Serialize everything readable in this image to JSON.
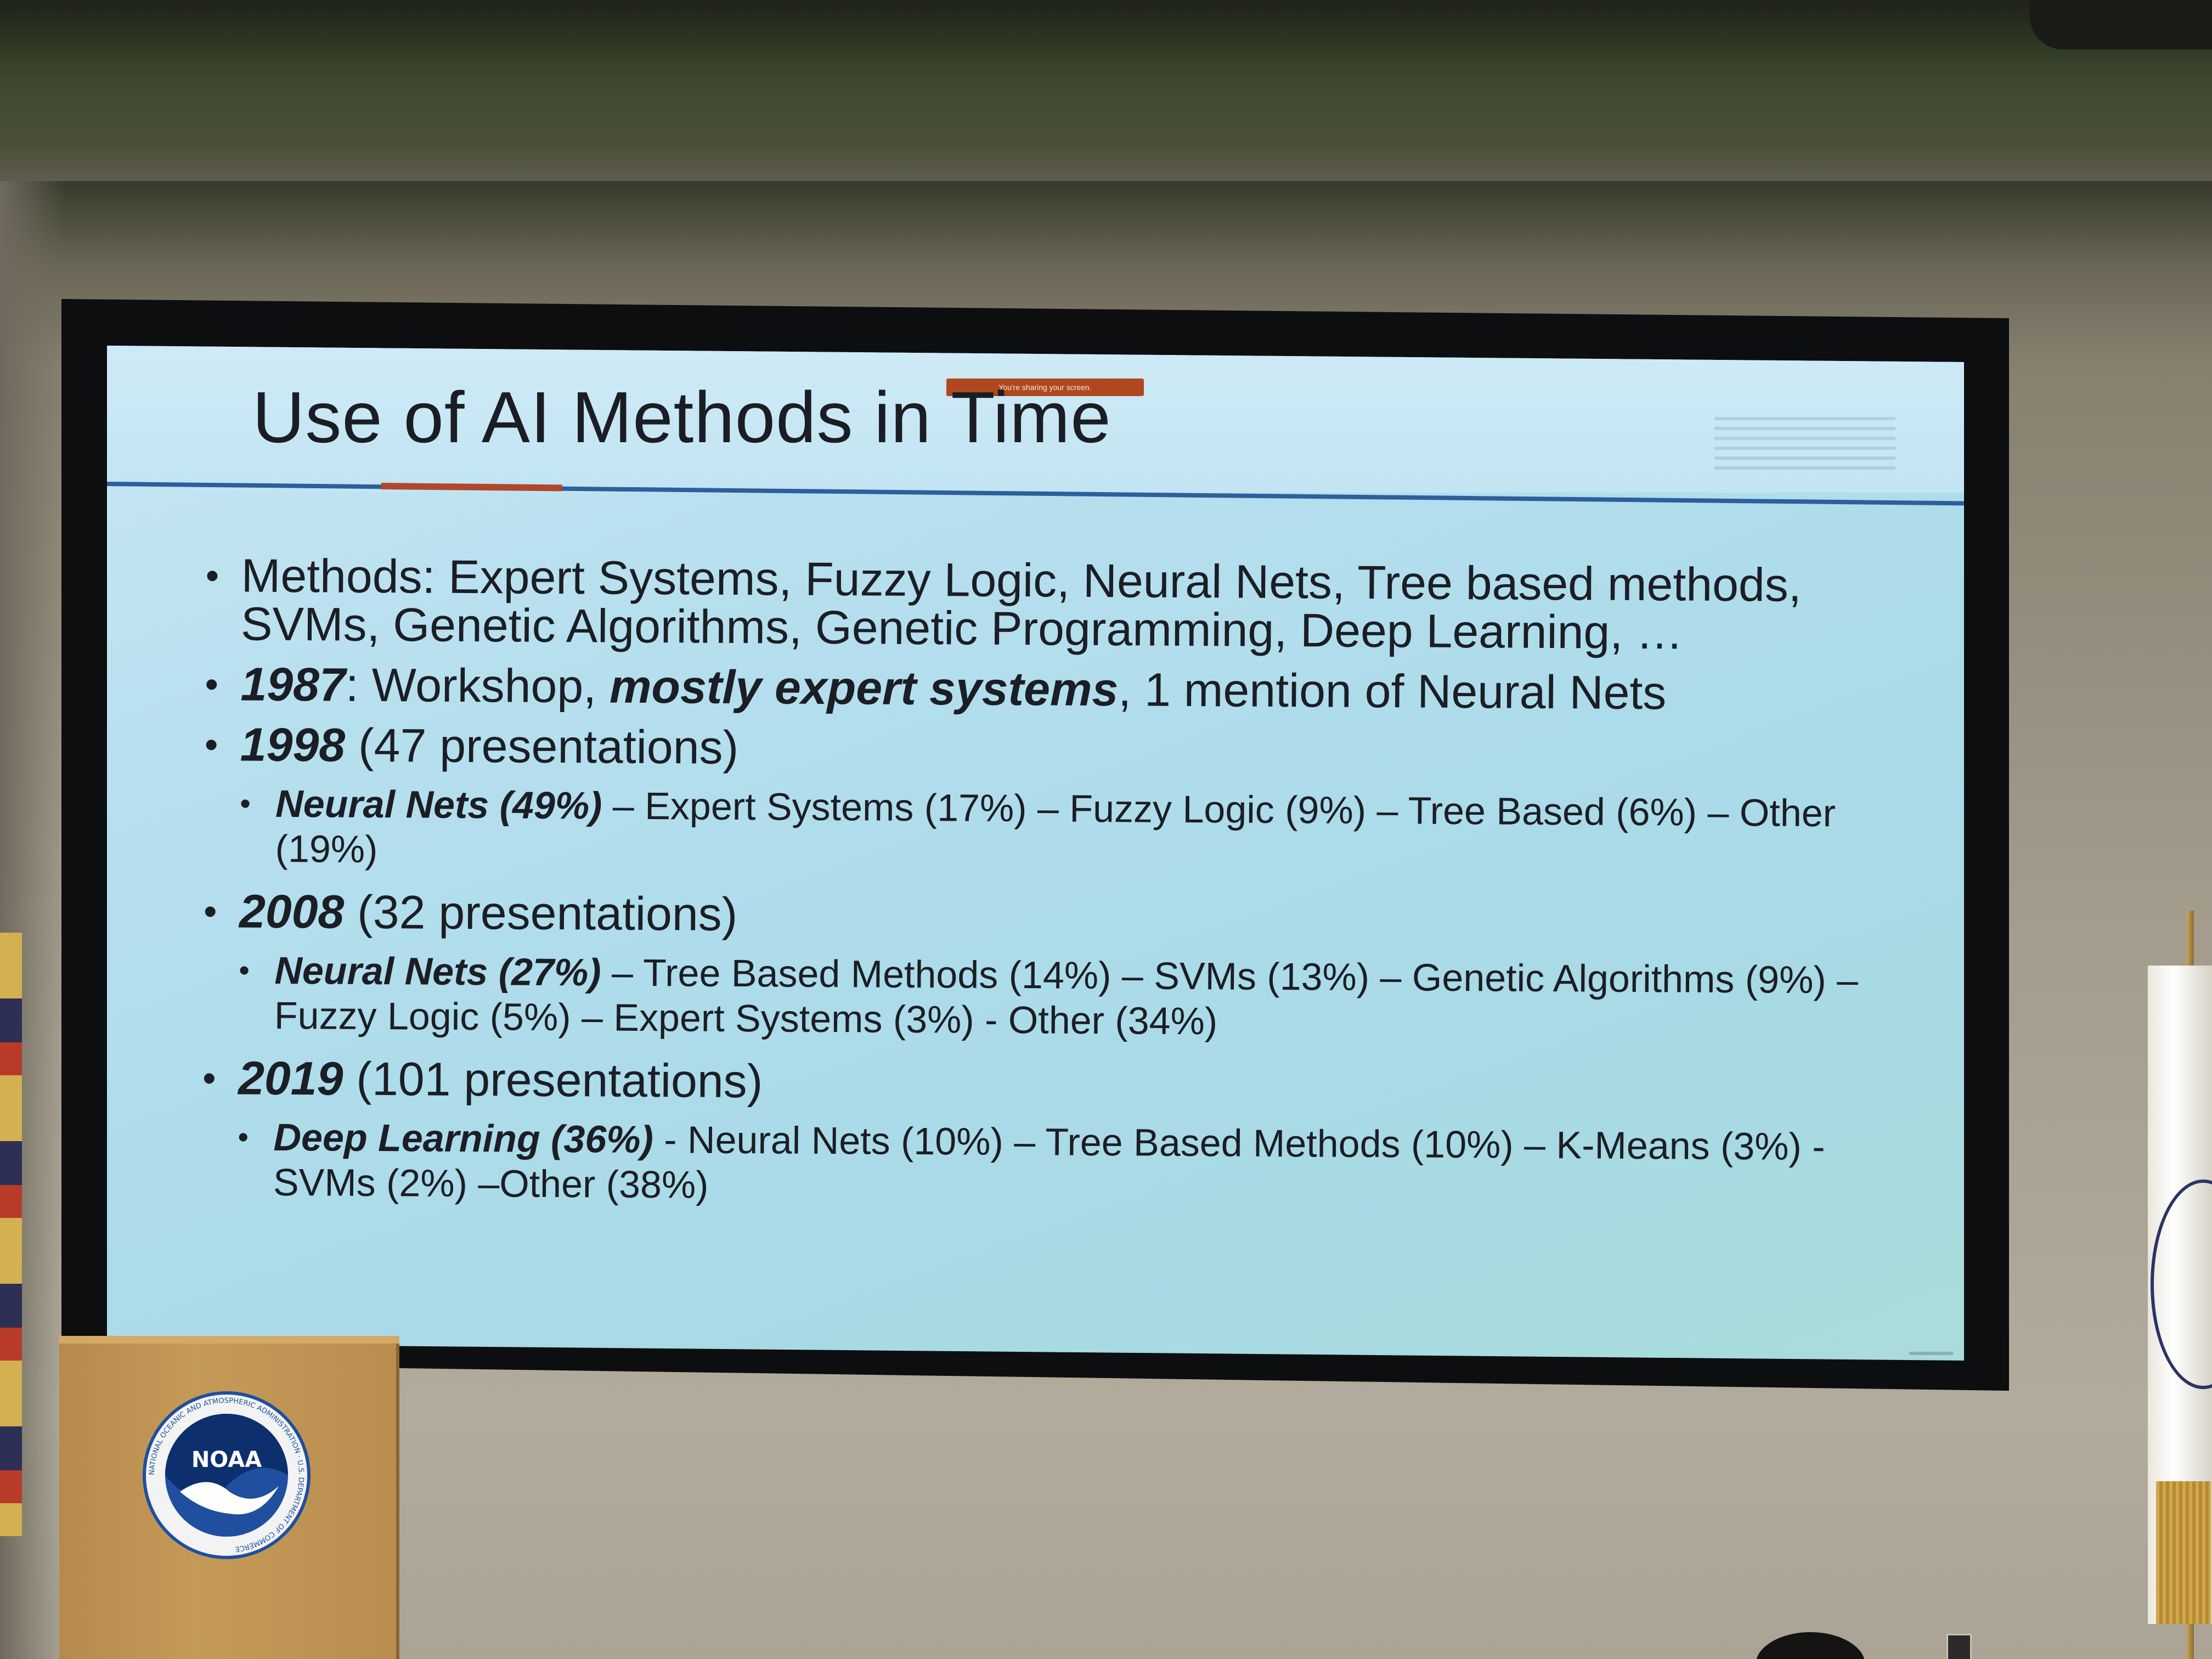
{
  "slide": {
    "title": "Use of AI Methods in Time",
    "share_banner": "You're sharing your screen.",
    "bullets": [
      {
        "text": "Methods: Expert Systems, Fuzzy Logic, Neural Nets, Tree based methods, SVMs, Genetic Algorithms, Genetic Programming, Deep Learning, …"
      },
      {
        "year": "1987",
        "text_a": ": Workshop, ",
        "emphasis": "mostly expert systems",
        "text_b": ", 1 mention of Neural Nets"
      },
      {
        "year": "1998",
        "count": " (47 presentations)",
        "sub_lead": "Neural Nets (49%)",
        "sub_rest": " – Expert Systems (17%) – Fuzzy Logic (9%) – Tree Based (6%) – Other (19%)"
      },
      {
        "year": "2008",
        "count": " (32 presentations)",
        "sub_lead": "Neural Nets (27%)",
        "sub_rest": " – Tree Based Methods (14%) – SVMs (13%) – Genetic Algorithms (9%) – Fuzzy Logic (5%) – Expert Systems (3%) - Other (34%)"
      },
      {
        "year": "2019",
        "count": " (101 presentations)",
        "sub_lead": "Deep Learning (36%)",
        "sub_rest": " - Neural Nets (10%) – Tree Based Methods (10%) – K-Means (3%) - SVMs (2%) –Other (38%)"
      }
    ]
  },
  "podium": {
    "logo_text": "NOAA",
    "logo_ring_text": "NATIONAL OCEANIC AND ATMOSPHERIC ADMINISTRATION · U.S. DEPARTMENT OF COMMERCE"
  },
  "colors": {
    "slide_bg": "#b8e0ef",
    "title_rule": "#2d5f9c",
    "title_accent": "#b0472b",
    "noaa_blue": "#1f4f9e",
    "podium_wood": "#c59a58"
  }
}
